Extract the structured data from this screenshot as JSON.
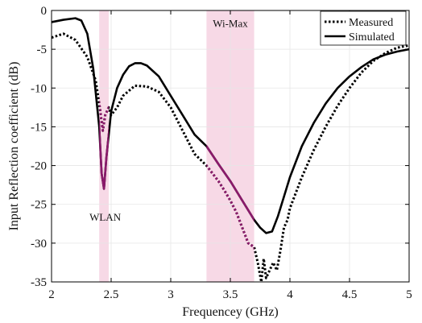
{
  "chart_data": {
    "type": "line",
    "xlabel": "Frequencey (GHz)",
    "ylabel": "Input Reflection coefficient (dB)",
    "xlim": [
      2,
      5
    ],
    "ylim": [
      -35,
      0
    ],
    "xticks": [
      "2",
      "2.5",
      "3",
      "3.5",
      "4",
      "4.5",
      "5"
    ],
    "yticks": [
      "0",
      "-5",
      "-10",
      "-15",
      "-20",
      "-25",
      "-30",
      "-35"
    ],
    "grid": true,
    "legend_position": "top-right",
    "highlight_color": "#8b1a6b",
    "band_color": "#f7d9e6",
    "bands": [
      {
        "label": "WLAN",
        "x": [
          2.4,
          2.48
        ]
      },
      {
        "label": "Wi-Max",
        "x": [
          3.3,
          3.7
        ]
      }
    ],
    "series": [
      {
        "name": "Measured",
        "style": "dotted",
        "color": "#000000",
        "x": [
          2.0,
          2.1,
          2.2,
          2.3,
          2.37,
          2.4,
          2.43,
          2.45,
          2.48,
          2.5,
          2.55,
          2.6,
          2.7,
          2.8,
          2.9,
          3.0,
          3.1,
          3.2,
          3.3,
          3.35,
          3.4,
          3.45,
          3.5,
          3.55,
          3.6,
          3.65,
          3.7,
          3.73,
          3.76,
          3.78,
          3.8,
          3.83,
          3.86,
          3.89,
          3.92,
          3.95,
          3.98,
          4.0,
          4.1,
          4.2,
          4.3,
          4.4,
          4.5,
          4.6,
          4.7,
          4.8,
          4.9,
          5.0
        ],
        "y": [
          -3.5,
          -3.0,
          -3.8,
          -6.0,
          -9.0,
          -12.0,
          -15.5,
          -13.5,
          -12.5,
          -13.5,
          -12.5,
          -11.0,
          -9.7,
          -9.8,
          -10.5,
          -12.5,
          -15.5,
          -18.5,
          -20.0,
          -21.0,
          -22.0,
          -23.2,
          -24.5,
          -26.0,
          -28.0,
          -30.0,
          -30.5,
          -32.5,
          -35.0,
          -32.0,
          -34.5,
          -33.5,
          -32.5,
          -33.5,
          -31.0,
          -28.0,
          -27.0,
          -25.5,
          -21.5,
          -18.0,
          -15.0,
          -12.3,
          -10.0,
          -8.0,
          -6.5,
          -5.5,
          -4.8,
          -4.5
        ]
      },
      {
        "name": "Simulated",
        "style": "solid",
        "color": "#000000",
        "x": [
          2.0,
          2.1,
          2.2,
          2.25,
          2.3,
          2.35,
          2.4,
          2.42,
          2.44,
          2.46,
          2.5,
          2.55,
          2.6,
          2.65,
          2.7,
          2.75,
          2.8,
          2.9,
          3.0,
          3.1,
          3.2,
          3.3,
          3.4,
          3.5,
          3.6,
          3.7,
          3.75,
          3.8,
          3.85,
          3.9,
          3.95,
          4.0,
          4.1,
          4.2,
          4.3,
          4.4,
          4.5,
          4.6,
          4.7,
          4.8,
          4.9,
          5.0
        ],
        "y": [
          -1.5,
          -1.2,
          -1.0,
          -1.3,
          -3.0,
          -7.5,
          -15.0,
          -21.0,
          -23.0,
          -19.0,
          -13.0,
          -10.0,
          -8.3,
          -7.2,
          -6.8,
          -6.8,
          -7.1,
          -8.5,
          -11.0,
          -13.5,
          -16.0,
          -17.5,
          -19.8,
          -22.0,
          -24.5,
          -27.0,
          -28.0,
          -28.7,
          -28.5,
          -26.5,
          -24.0,
          -21.5,
          -17.5,
          -14.5,
          -12.0,
          -10.0,
          -8.5,
          -7.3,
          -6.3,
          -5.7,
          -5.3,
          -5.0
        ]
      }
    ]
  }
}
